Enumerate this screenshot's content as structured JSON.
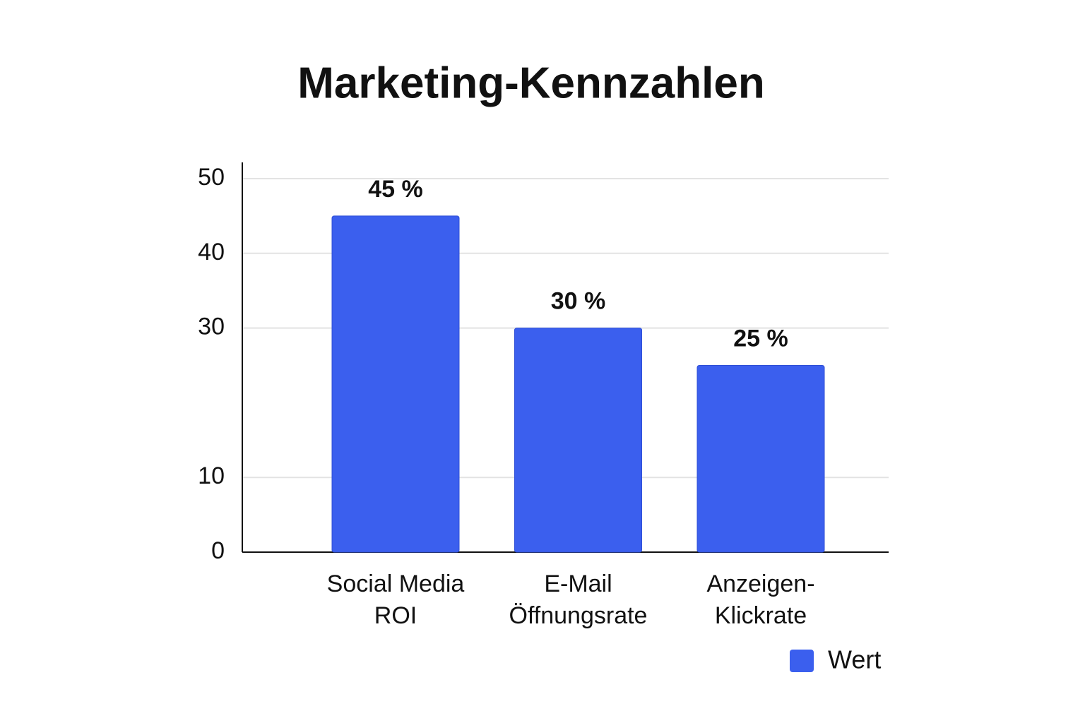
{
  "chart_data": {
    "type": "bar",
    "title": "Marketing-Kennzahlen",
    "categories": [
      "Social Media ROI",
      "E-Mail Öffnungsrate",
      "Anzeigen-Klickrate"
    ],
    "series": [
      {
        "name": "Wert",
        "color": "#3b5fee",
        "values": [
          45,
          30,
          25
        ],
        "value_labels": [
          "45 %",
          "30 %",
          "25 %"
        ]
      }
    ],
    "ylim": [
      0,
      50
    ],
    "yticks": [
      0,
      10,
      30,
      40,
      50
    ],
    "grid": true,
    "legend": "bottom-right"
  }
}
